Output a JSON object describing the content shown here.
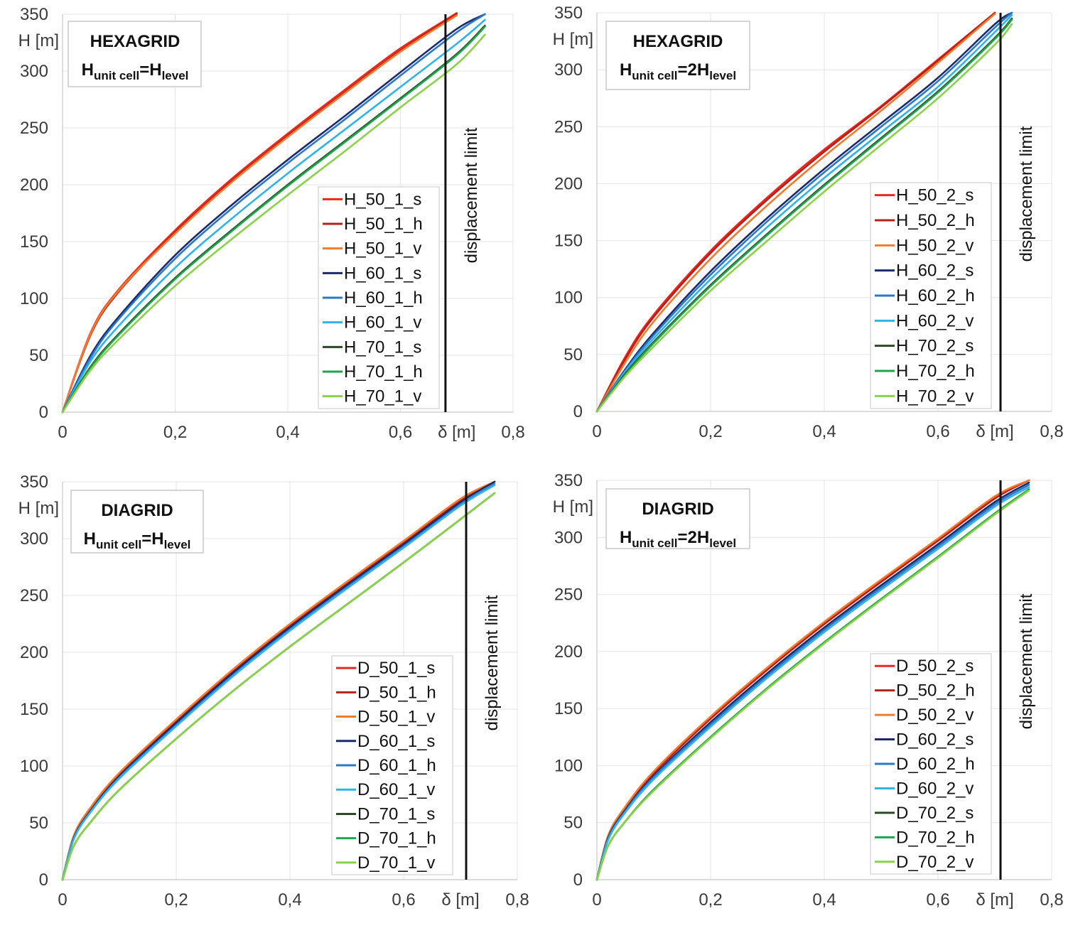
{
  "chart_data": [
    {
      "type": "line",
      "title": "HEXAGRID",
      "subtitle": "Hunit cell=Hlevel",
      "subtitle_parts": [
        "H",
        "unit cell",
        "=H",
        "level"
      ],
      "xlabel": "δ [m]",
      "ylabel": "H [m]",
      "xlim": [
        0,
        0.8
      ],
      "ylim": [
        0,
        350
      ],
      "xticks": [
        "0",
        "0,2",
        "0,4",
        "0,6",
        "0,8"
      ],
      "yticks": [
        "0",
        "50",
        "100",
        "150",
        "200",
        "250",
        "300",
        "350"
      ],
      "limit_label": "displacement limit",
      "limit_x": 0.68,
      "grid": true,
      "legend_position": "bottom-right",
      "x": [
        0,
        0.05,
        0.1,
        0.2,
        0.3,
        0.4,
        0.5,
        0.6,
        0.7,
        0.75
      ],
      "series": [
        {
          "name": "H_50_1_s",
          "color": "#e8281e",
          "values": [
            0,
            70,
            108,
            160,
            205,
            245,
            283,
            320,
            351,
            null
          ]
        },
        {
          "name": "H_50_1_h",
          "color": "#b5201a",
          "values": [
            0,
            68,
            106,
            158,
            203,
            243,
            281,
            318,
            350,
            null
          ]
        },
        {
          "name": "H_50_1_v",
          "color": "#f07b2d",
          "values": [
            0,
            69,
            107,
            157,
            202,
            242,
            280,
            317,
            349,
            null
          ]
        },
        {
          "name": "H_60_1_s",
          "color": "#1b2a6b",
          "values": [
            0,
            50,
            84,
            138,
            182,
            222,
            260,
            299,
            337,
            350
          ]
        },
        {
          "name": "H_60_1_h",
          "color": "#2a78c8",
          "values": [
            0,
            48,
            82,
            135,
            179,
            219,
            257,
            296,
            334,
            350
          ]
        },
        {
          "name": "H_60_1_v",
          "color": "#2fb4ea",
          "values": [
            0,
            45,
            76,
            127,
            170,
            210,
            248,
            286,
            324,
            345
          ]
        },
        {
          "name": "H_70_1_s",
          "color": "#2b4a24",
          "values": [
            0,
            40,
            69,
            118,
            160,
            200,
            238,
            276,
            315,
            340
          ]
        },
        {
          "name": "H_70_1_h",
          "color": "#1ea64e",
          "values": [
            0,
            39,
            68,
            117,
            159,
            199,
            237,
            275,
            314,
            339
          ]
        },
        {
          "name": "H_70_1_v",
          "color": "#8bd14a",
          "values": [
            0,
            37,
            64,
            111,
            152,
            191,
            229,
            268,
            306,
            332
          ]
        }
      ]
    },
    {
      "type": "line",
      "title": "HEXAGRID",
      "subtitle": "Hunit cell=2Hlevel",
      "subtitle_parts": [
        "H",
        "unit cell",
        "=2H",
        "level"
      ],
      "xlabel": "δ [m]",
      "ylabel": "H [m]",
      "xlim": [
        0,
        0.8
      ],
      "ylim": [
        0,
        350
      ],
      "xticks": [
        "0",
        "0,2",
        "0,4",
        "0,6",
        "0,8"
      ],
      "yticks": [
        "0",
        "50",
        "100",
        "150",
        "200",
        "250",
        "300",
        "350"
      ],
      "limit_label": "displacement limit",
      "limit_x": 0.71,
      "grid": true,
      "legend_position": "bottom-right",
      "x": [
        0,
        0.05,
        0.1,
        0.2,
        0.3,
        0.4,
        0.5,
        0.6,
        0.7,
        0.73
      ],
      "series": [
        {
          "name": "H_50_2_s",
          "color": "#e8281e",
          "values": [
            0,
            48,
            85,
            141,
            188,
            230,
            268,
            309,
            350,
            null
          ]
        },
        {
          "name": "H_50_2_h",
          "color": "#b5201a",
          "values": [
            0,
            46,
            83,
            139,
            186,
            228,
            267,
            308,
            350,
            null
          ]
        },
        {
          "name": "H_50_2_v",
          "color": "#f07b2d",
          "values": [
            0,
            43,
            79,
            134,
            181,
            224,
            264,
            306,
            349,
            null
          ]
        },
        {
          "name": "H_60_2_s",
          "color": "#1b2a6b",
          "values": [
            0,
            37,
            69,
            123,
            170,
            213,
            253,
            293,
            340,
            350
          ]
        },
        {
          "name": "H_60_2_h",
          "color": "#2a78c8",
          "values": [
            0,
            36,
            67,
            120,
            167,
            210,
            250,
            290,
            337,
            350
          ]
        },
        {
          "name": "H_60_2_v",
          "color": "#2fb4ea",
          "values": [
            0,
            35,
            64,
            116,
            162,
            205,
            245,
            285,
            333,
            348
          ]
        },
        {
          "name": "H_70_2_s",
          "color": "#2b4a24",
          "values": [
            0,
            33,
            61,
            111,
            156,
            199,
            240,
            281,
            328,
            345
          ]
        },
        {
          "name": "H_70_2_h",
          "color": "#1ea64e",
          "values": [
            0,
            32,
            60,
            110,
            155,
            198,
            239,
            280,
            327,
            344
          ]
        },
        {
          "name": "H_70_2_v",
          "color": "#8bd14a",
          "values": [
            0,
            31,
            57,
            106,
            150,
            193,
            234,
            275,
            322,
            340
          ]
        }
      ]
    },
    {
      "type": "line",
      "title": "DIAGRID",
      "subtitle": "Hunit cell=Hlevel",
      "subtitle_parts": [
        "H",
        "unit cell",
        "=H",
        "level"
      ],
      "xlabel": "δ [m]",
      "ylabel": "H [m]",
      "xlim": [
        0,
        0.8
      ],
      "ylim": [
        0,
        350
      ],
      "xticks": [
        "0",
        "0,2",
        "0,4",
        "0,6",
        "0,8"
      ],
      "yticks": [
        "0",
        "50",
        "100",
        "150",
        "200",
        "250",
        "300",
        "350"
      ],
      "limit_label": "displacement limit",
      "limit_x": 0.71,
      "grid": true,
      "legend_position": "bottom-right",
      "x": [
        0,
        0.02,
        0.05,
        0.1,
        0.2,
        0.3,
        0.4,
        0.5,
        0.6,
        0.7,
        0.76
      ],
      "series": [
        {
          "name": "D_50_1_s",
          "color": "#e8281e",
          "values": [
            0,
            38,
            63,
            93,
            140,
            184,
            224,
            261,
            297,
            334,
            350
          ]
        },
        {
          "name": "D_50_1_h",
          "color": "#b5201a",
          "values": [
            0,
            38,
            62,
            92,
            139,
            183,
            223,
            260,
            296,
            333,
            350
          ]
        },
        {
          "name": "D_50_1_v",
          "color": "#f07b2d",
          "values": [
            0,
            39,
            64,
            94,
            141,
            185,
            225,
            262,
            298,
            335,
            350
          ]
        },
        {
          "name": "D_60_1_s",
          "color": "#1b2a6b",
          "values": [
            0,
            37,
            61,
            91,
            138,
            182,
            222,
            259,
            295,
            332,
            350
          ]
        },
        {
          "name": "D_60_1_h",
          "color": "#2a78c8",
          "values": [
            0,
            36,
            60,
            90,
            136,
            180,
            220,
            257,
            293,
            330,
            348
          ]
        },
        {
          "name": "D_60_1_v",
          "color": "#2fb4ea",
          "values": [
            0,
            36,
            60,
            89,
            135,
            179,
            219,
            256,
            292,
            329,
            347
          ]
        },
        {
          "name": "D_70_1_s",
          "color": "#2b4a24",
          "values": [
            0,
            30,
            51,
            79,
            124,
            166,
            205,
            242,
            279,
            317,
            340
          ]
        },
        {
          "name": "D_70_1_h",
          "color": "#1ea64e",
          "values": [
            0,
            30,
            51,
            79,
            124,
            166,
            205,
            242,
            279,
            317,
            340
          ]
        },
        {
          "name": "D_70_1_v",
          "color": "#8bd14a",
          "values": [
            0,
            30,
            51,
            79,
            124,
            166,
            205,
            242,
            279,
            317,
            340
          ]
        }
      ]
    },
    {
      "type": "line",
      "title": "DIAGRID",
      "subtitle": "Hunit cell=2Hlevel",
      "subtitle_parts": [
        "H",
        "unit cell",
        "=2H",
        "level"
      ],
      "xlabel": "δ [m]",
      "ylabel": "H [m]",
      "xlim": [
        0,
        0.8
      ],
      "ylim": [
        0,
        350
      ],
      "xticks": [
        "0",
        "0,2",
        "0,4",
        "0,6",
        "0,8"
      ],
      "yticks": [
        "0",
        "50",
        "100",
        "150",
        "200",
        "250",
        "300",
        "350"
      ],
      "limit_label": "displacement limit",
      "limit_x": 0.71,
      "grid": true,
      "legend_position": "bottom-right",
      "x": [
        0,
        0.02,
        0.05,
        0.1,
        0.2,
        0.3,
        0.4,
        0.5,
        0.6,
        0.7,
        0.76
      ],
      "series": [
        {
          "name": "D_50_2_s",
          "color": "#e8281e",
          "values": [
            0,
            38,
            63,
            94,
            142,
            185,
            225,
            262,
            298,
            335,
            350
          ]
        },
        {
          "name": "D_50_2_h",
          "color": "#b5201a",
          "values": [
            0,
            38,
            63,
            93,
            141,
            184,
            224,
            261,
            297,
            334,
            350
          ]
        },
        {
          "name": "D_50_2_v",
          "color": "#f07b2d",
          "values": [
            0,
            39,
            64,
            95,
            143,
            186,
            226,
            263,
            299,
            336,
            350
          ]
        },
        {
          "name": "D_60_2_s",
          "color": "#1b2a6b",
          "values": [
            0,
            37,
            61,
            91,
            138,
            181,
            221,
            258,
            294,
            331,
            348
          ]
        },
        {
          "name": "D_60_2_h",
          "color": "#2a78c8",
          "values": [
            0,
            36,
            60,
            90,
            136,
            179,
            219,
            256,
            292,
            329,
            346
          ]
        },
        {
          "name": "D_60_2_v",
          "color": "#2fb4ea",
          "values": [
            0,
            35,
            59,
            88,
            134,
            177,
            217,
            254,
            290,
            327,
            344
          ]
        },
        {
          "name": "D_70_2_s",
          "color": "#2b4a24",
          "values": [
            0,
            30,
            51,
            79,
            125,
            168,
            208,
            246,
            283,
            321,
            342
          ]
        },
        {
          "name": "D_70_2_h",
          "color": "#1ea64e",
          "values": [
            0,
            30,
            51,
            79,
            125,
            168,
            208,
            246,
            283,
            321,
            342
          ]
        },
        {
          "name": "D_70_2_v",
          "color": "#8bd14a",
          "values": [
            0,
            30,
            51,
            78,
            124,
            167,
            207,
            245,
            282,
            320,
            341
          ]
        }
      ]
    }
  ]
}
